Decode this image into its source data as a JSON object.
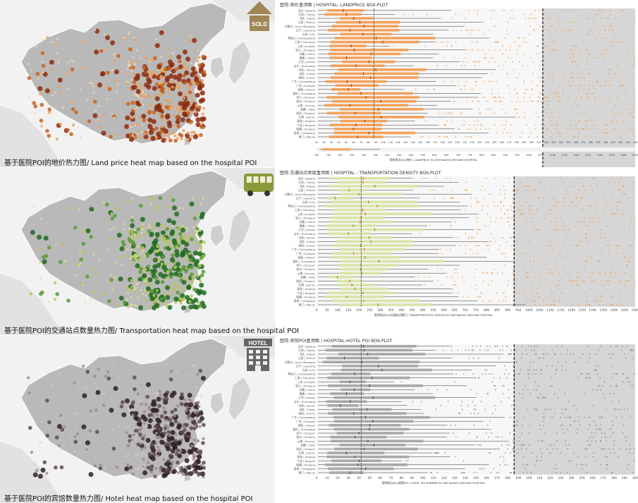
{
  "panels": [
    {
      "key": "land",
      "caption": "基于医院POI的地价热力图/ Land price heat map based on the hospital POI",
      "icon": {
        "name": "sold-house-icon",
        "label": "SOLD",
        "color": "#a08556"
      },
      "heat_colors": [
        "#f3d6b2",
        "#e6a464",
        "#c8641e",
        "#8e2a0e"
      ],
      "chart_title": "医院-地价盒须图 | HOSPITAL- LANDPRICE BOX-PLOT",
      "axis_caption": "医院周边1km地价 | LANDPRICE IN 1KM RADIUS AROUND HOSPITAL",
      "box_color": "#f2a25c",
      "dark_color": "#8a3b12",
      "ticks_a": [
        "1K",
        "2K",
        "3K",
        "4K",
        "5K",
        "6K",
        "7K",
        "8K",
        "9K",
        "10K",
        "11K",
        "12K",
        "13K",
        "14K",
        "15K",
        "16K",
        "17K",
        "18K",
        "19K",
        "20K",
        "21K",
        "22K",
        "23K",
        "24K",
        "25K",
        "26K",
        "27K",
        "28K",
        "29K",
        "30K",
        "31K",
        "32K",
        "33K",
        "34K",
        "35K",
        "36K",
        "37K",
        "38K",
        "39K",
        "40K",
        "41K",
        "42K",
        "43K",
        "44K"
      ],
      "ticks_b": [
        "10K",
        "15K",
        "20K",
        "25K",
        "30K",
        "35K",
        "40K",
        "45K",
        "50K",
        "55K",
        "60K",
        "65K",
        "70K",
        "75K",
        "80K",
        "85K",
        "90K",
        "95K",
        "100K",
        "105K",
        "110K",
        "115K",
        "120K",
        "125K",
        "130K",
        "135K",
        "140K",
        "145K"
      ]
    },
    {
      "key": "transport",
      "caption": "基于医院POI的交通站点数量热力图/ Transportation heat map based on the hospital POI",
      "icon": {
        "name": "bus-icon",
        "label": "",
        "color": "#8a9a3a"
      },
      "heat_colors": [
        "#e6e08a",
        "#b9c55a",
        "#5c9a36",
        "#1e6b1e"
      ],
      "chart_title": "医院-交通站点密度盒须图 | HOSPITAL - TRANSPORTATION DENSITY BOX-PLOT",
      "axis_caption": "医院周边2km交通站点数目 | TRANSPORTATION STATION IN 2KM RADIUS AROUND HOSPITAL",
      "box_color": "#d9e4a8",
      "dark_color": "#c8641e",
      "ticks_a": [
        "0",
        "50",
        "100",
        "150",
        "200",
        "250",
        "300",
        "350",
        "400",
        "450",
        "500",
        "550",
        "600",
        "650",
        "700",
        "750",
        "800",
        "850",
        "900",
        "950",
        "1000",
        "1050",
        "1100",
        "1150",
        "1200",
        "1250",
        "1300",
        "1350",
        "1400",
        "1450",
        "1500"
      ],
      "ticks_b": []
    },
    {
      "key": "hotel",
      "caption": "基于医院POI的宾馆数量热力图/ Hotel heat map based on the hospital POI",
      "icon": {
        "name": "hotel-building-icon",
        "label": "HOTEL",
        "color": "#666666"
      },
      "heat_colors": [
        "#cfc7cc",
        "#9a8a94",
        "#5e4a56",
        "#2e2026"
      ],
      "chart_title": "医院-宾馆POI盒须图 | HOSPITAL-HOTEL POI BOX-PLOT",
      "axis_caption": "医院周边2km宾馆POI | HOTEL POI NUMBER IN 2KM RADIUS AROUND HOSPITAL",
      "box_color": "#a8a8a8",
      "dark_color": "#444444",
      "ticks_a": [
        "0",
        "10",
        "20",
        "30",
        "40",
        "50",
        "60",
        "70",
        "80",
        "90",
        "100",
        "110",
        "120",
        "130",
        "140",
        "150",
        "160",
        "170",
        "180",
        "190",
        "200",
        "210",
        "220",
        "230",
        "240",
        "250",
        "260",
        "270",
        "280",
        "290",
        "300"
      ],
      "ticks_b": []
    }
  ],
  "provinces": [
    "北京 | Beijing",
    "天津 | Tianjin",
    "河北 | Hebei",
    "山西 | Shanxi",
    "内蒙古 | Inner Mongolia",
    "辽宁 | Liaoning",
    "吉林 | Jilin",
    "黑龙江 | Heilongjiang",
    "上海 | Shanghai",
    "江苏 | Jiangsu",
    "浙江 | Zhejiang",
    "安徽 | Anhui",
    "福建 | Fujian",
    "江西 | Jiangxi",
    "山东 | Shandong",
    "河南 | Henan",
    "湖北 | Hubei",
    "湖南 | Hunan",
    "广东 | Guangdong",
    "广西 | Guangxi",
    "海南 | Hainan",
    "重庆 | Chongqing",
    "四川 | Sichuan",
    "贵州 | Guizhou",
    "云南 | Yunnan",
    "西藏 | Tibet",
    "陕西 | Shaanxi",
    "甘肃 | Gansu",
    "青海 | Qinghai",
    "宁夏 | Ningxia",
    "新疆 | Xinjiang",
    "香港 | Hongkong",
    "澳门 | Macao"
  ]
}
